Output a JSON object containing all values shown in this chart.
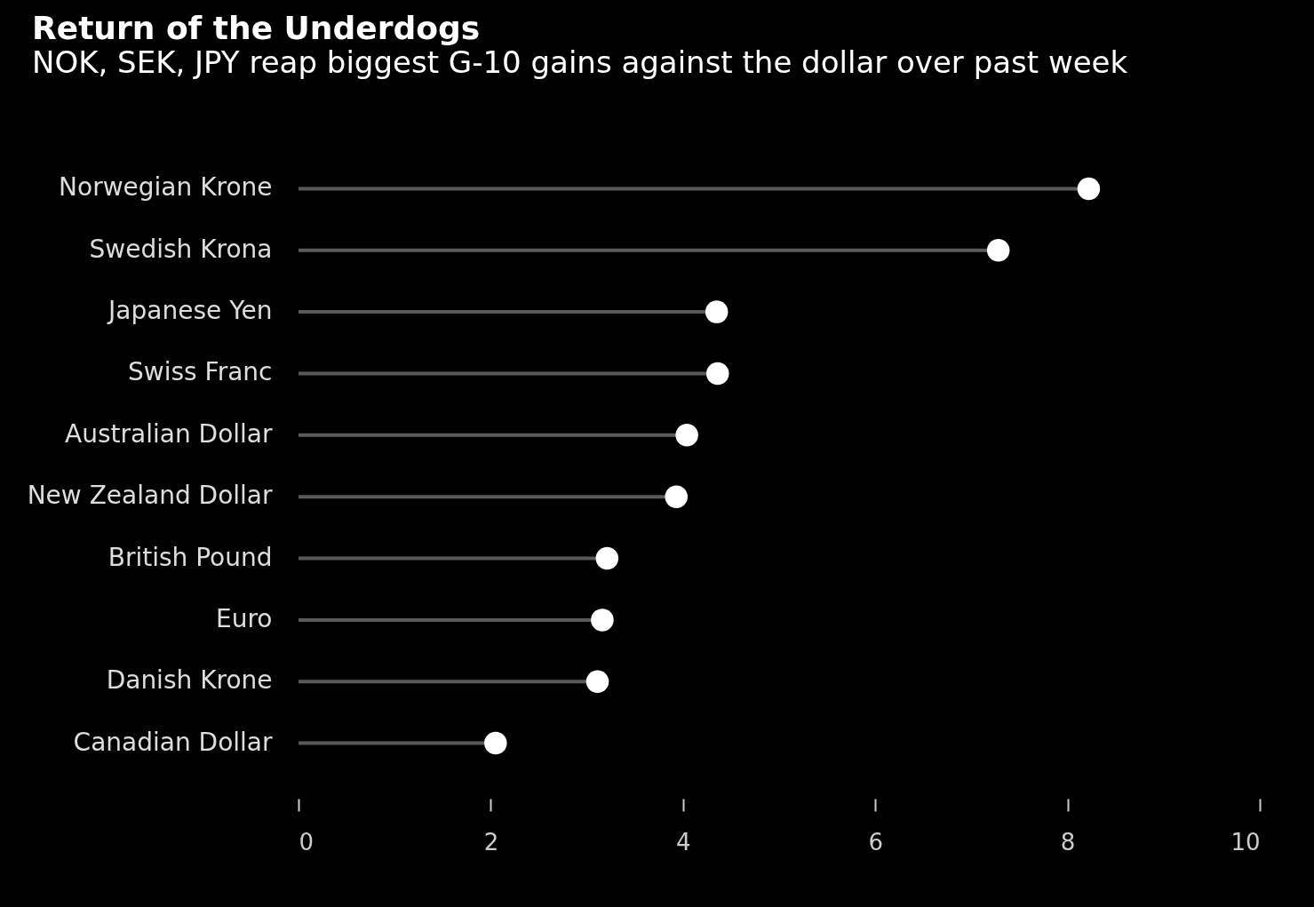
{
  "chart_data": {
    "type": "lollipop",
    "title": "Return of the Underdogs",
    "subtitle": "NOK, SEK, JPY reap biggest G-10 gains against the dollar over past week",
    "orientation": "horizontal",
    "categories": [
      "Norwegian Krone",
      "Swedish Krona",
      "Japanese Yen",
      "Swiss Franc",
      "Australian Dollar",
      "New Zealand Dollar",
      "British Pound",
      "Euro",
      "Danish Krone",
      "Canadian Dollar"
    ],
    "values": [
      8.22,
      7.28,
      4.35,
      4.36,
      4.04,
      3.93,
      3.21,
      3.16,
      3.11,
      2.05
    ],
    "color": "#ffffff",
    "marker": "circle",
    "grid": false,
    "xlim": [
      0,
      10
    ],
    "xticks": [
      0,
      2,
      4,
      6,
      8,
      10
    ]
  }
}
